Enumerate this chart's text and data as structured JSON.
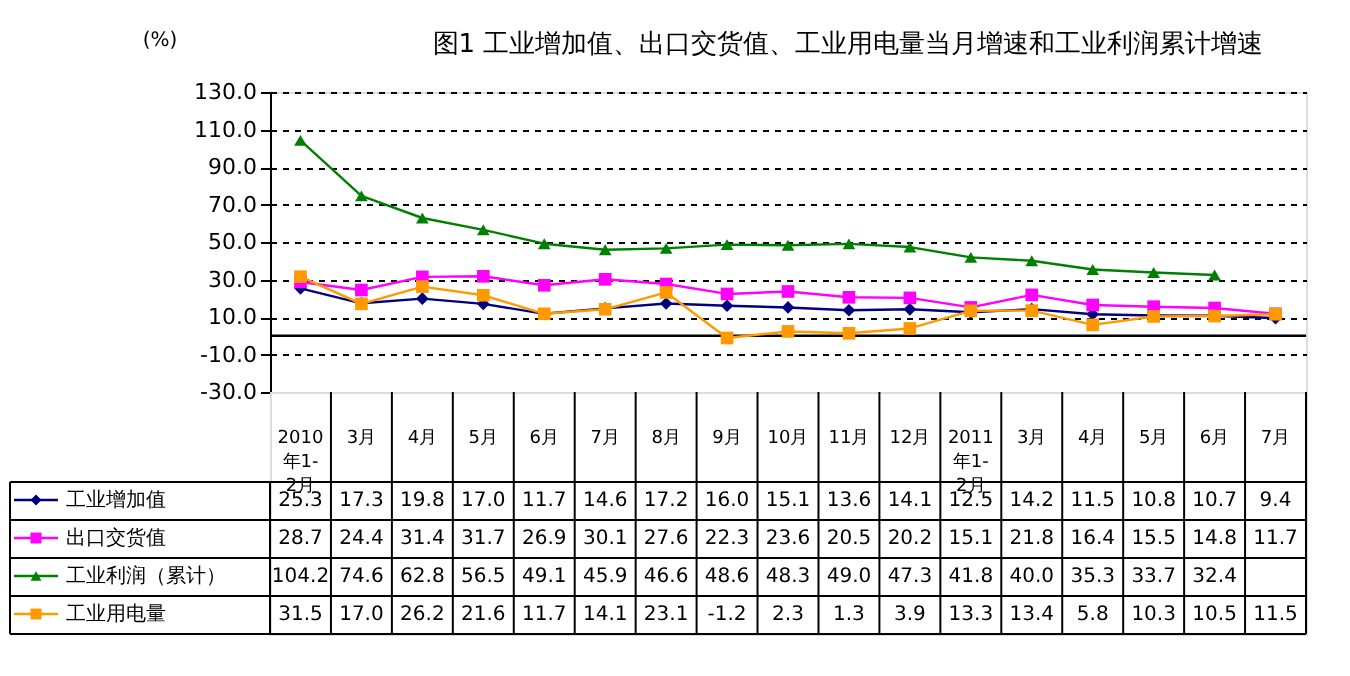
{
  "chart_data": {
    "type": "line",
    "title": "图1  工业增加值、出口交货值、工业用电量当月增速和工业利润累计增速",
    "ylabel": "(%)",
    "categories": [
      "2010年1-2月",
      "3月",
      "4月",
      "5月",
      "6月",
      "7月",
      "8月",
      "9月",
      "10月",
      "11月",
      "12月",
      "2011年1-2月",
      "3月",
      "4月",
      "5月",
      "6月",
      "7月"
    ],
    "series": [
      {
        "name": "工业增加值",
        "color": "#000080",
        "marker": "diamond",
        "values": [
          25.3,
          17.3,
          19.8,
          17.0,
          11.7,
          14.6,
          17.2,
          16.0,
          15.1,
          13.6,
          14.1,
          12.5,
          14.2,
          11.5,
          10.8,
          10.7,
          9.4
        ],
        "value_labels": [
          "25.3",
          "17.3",
          "19.8",
          "17.0",
          "11.7",
          "14.6",
          "17.2",
          "16.0",
          "15.1",
          "13.6",
          "14.1",
          "12.5",
          "14.2",
          "11.5",
          "10.8",
          "10.7",
          "9.4"
        ]
      },
      {
        "name": "出口交货值",
        "color": "#ff00ff",
        "marker": "square",
        "values": [
          28.7,
          24.4,
          31.4,
          31.7,
          26.9,
          30.1,
          27.6,
          22.3,
          23.6,
          20.5,
          20.2,
          15.1,
          21.8,
          16.4,
          15.5,
          14.8,
          11.7
        ],
        "value_labels": [
          "28.7",
          "24.4",
          "31.4",
          "31.7",
          "26.9",
          "30.1",
          "27.6",
          "22.3",
          "23.6",
          "20.5",
          "20.2",
          "15.1",
          "21.8",
          "16.4",
          "15.5",
          "14.8",
          "11.7"
        ]
      },
      {
        "name": "工业利润（累计）",
        "color": "#008000",
        "marker": "triangle",
        "values": [
          104.2,
          74.6,
          62.8,
          56.5,
          49.1,
          45.9,
          46.6,
          48.6,
          48.3,
          49.0,
          47.3,
          41.8,
          40.0,
          35.3,
          33.7,
          32.4,
          null
        ],
        "value_labels": [
          "104.2",
          "74.6",
          "62.8",
          "56.5",
          "49.1",
          "45.9",
          "46.6",
          "48.6",
          "48.3",
          "49.0",
          "47.3",
          "41.8",
          "40.0",
          "35.3",
          "33.7",
          "32.4",
          null
        ]
      },
      {
        "name": "工业用电量",
        "color": "#ff9900",
        "marker": "square",
        "values": [
          31.5,
          17.0,
          26.2,
          21.6,
          11.7,
          14.1,
          23.1,
          -1.2,
          2.3,
          1.3,
          3.9,
          13.3,
          13.4,
          5.8,
          10.3,
          10.5,
          11.5
        ],
        "value_labels": [
          "31.5",
          "17.0",
          "26.2",
          "21.6",
          "11.7",
          "14.1",
          "23.1",
          "-1.2",
          "2.3",
          "1.3",
          "3.9",
          "13.3",
          "13.4",
          "5.8",
          "10.3",
          "10.5",
          "11.5"
        ]
      }
    ],
    "ylim": [
      -30,
      130
    ],
    "yticks": [
      {
        "value": -30,
        "label": "-30.0"
      },
      {
        "value": -10,
        "label": "-10.0"
      },
      {
        "value": 10,
        "label": "10.0"
      },
      {
        "value": 30,
        "label": "30.0"
      },
      {
        "value": 50,
        "label": "50.0"
      },
      {
        "value": 70,
        "label": "70.0"
      },
      {
        "value": 90,
        "label": "90.0"
      },
      {
        "value": 110,
        "label": "110.0"
      },
      {
        "value": 130,
        "label": "130.0"
      }
    ],
    "ref_lines": [
      {
        "axis": "y",
        "value": 0,
        "color": "#000000",
        "line_style": "solid"
      }
    ],
    "grid": "y",
    "line_style": "solid",
    "legend": "bottom left"
  }
}
